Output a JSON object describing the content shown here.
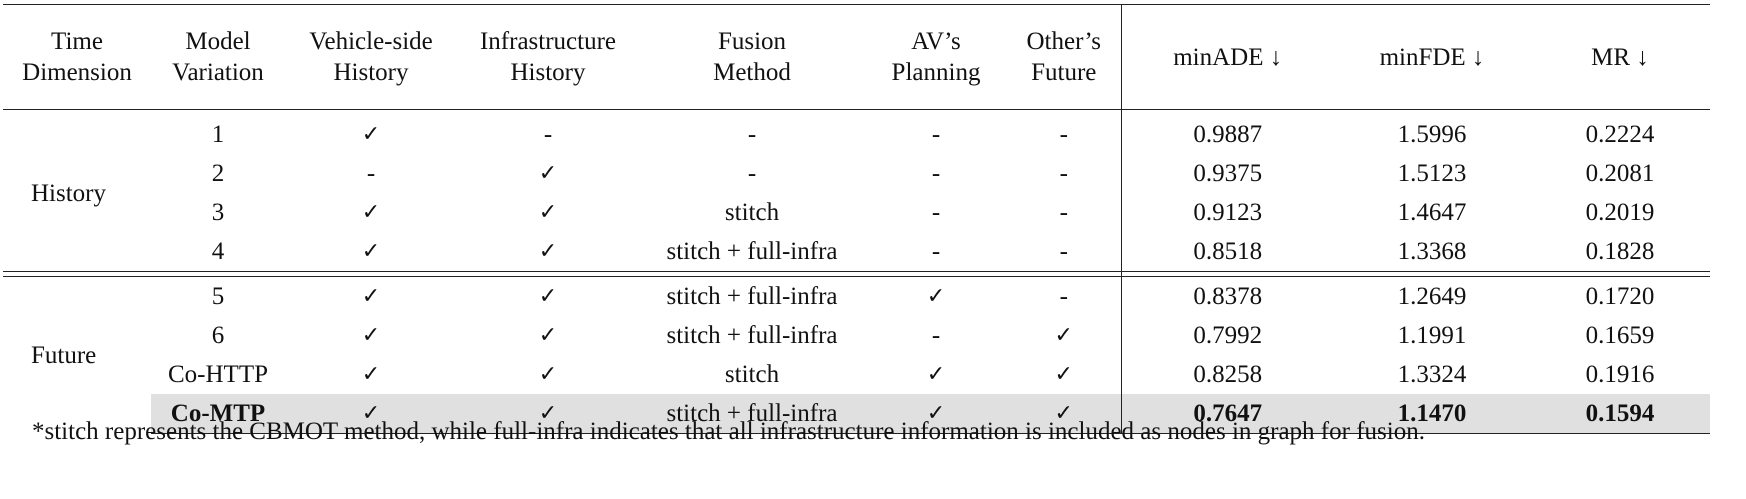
{
  "headers": [
    [
      "Time",
      "Dimension"
    ],
    [
      "Model",
      "Variation"
    ],
    [
      "Vehicle-side",
      "History"
    ],
    [
      "Infrastructure",
      "History"
    ],
    [
      "Fusion",
      "Method"
    ],
    [
      "AV’s",
      "Planning"
    ],
    [
      "Other’s",
      "Future"
    ],
    [
      "minADE ↓"
    ],
    [
      "minFDE ↓"
    ],
    [
      "MR ↓"
    ]
  ],
  "groups": {
    "history": "History",
    "future": "Future"
  },
  "rows": [
    [
      "1",
      "✓",
      "-",
      "-",
      "-",
      "-",
      "0.9887",
      "1.5996",
      "0.2224"
    ],
    [
      "2",
      "-",
      "✓",
      "-",
      "-",
      "-",
      "0.9375",
      "1.5123",
      "0.2081"
    ],
    [
      "3",
      "✓",
      "✓",
      "stitch",
      "-",
      "-",
      "0.9123",
      "1.4647",
      "0.2019"
    ],
    [
      "4",
      "✓",
      "✓",
      "stitch + full-infra",
      "-",
      "-",
      "0.8518",
      "1.3368",
      "0.1828"
    ],
    [
      "5",
      "✓",
      "✓",
      "stitch + full-infra",
      "✓",
      "-",
      "0.8378",
      "1.2649",
      "0.1720"
    ],
    [
      "6",
      "✓",
      "✓",
      "stitch + full-infra",
      "-",
      "✓",
      "0.7992",
      "1.1991",
      "0.1659"
    ],
    [
      "Co-HTTP",
      "✓",
      "✓",
      "stitch",
      "✓",
      "✓",
      "0.8258",
      "1.3324",
      "0.1916"
    ],
    [
      "Co-MTP",
      "✓",
      "✓",
      "stitch + full-infra",
      "✓",
      "✓",
      "0.7647",
      "1.1470",
      "0.1594"
    ]
  ],
  "footnote": "*stitch represents the CBMOT method, while full-infra indicates that all infrastructure information is included as nodes in graph for fusion."
}
